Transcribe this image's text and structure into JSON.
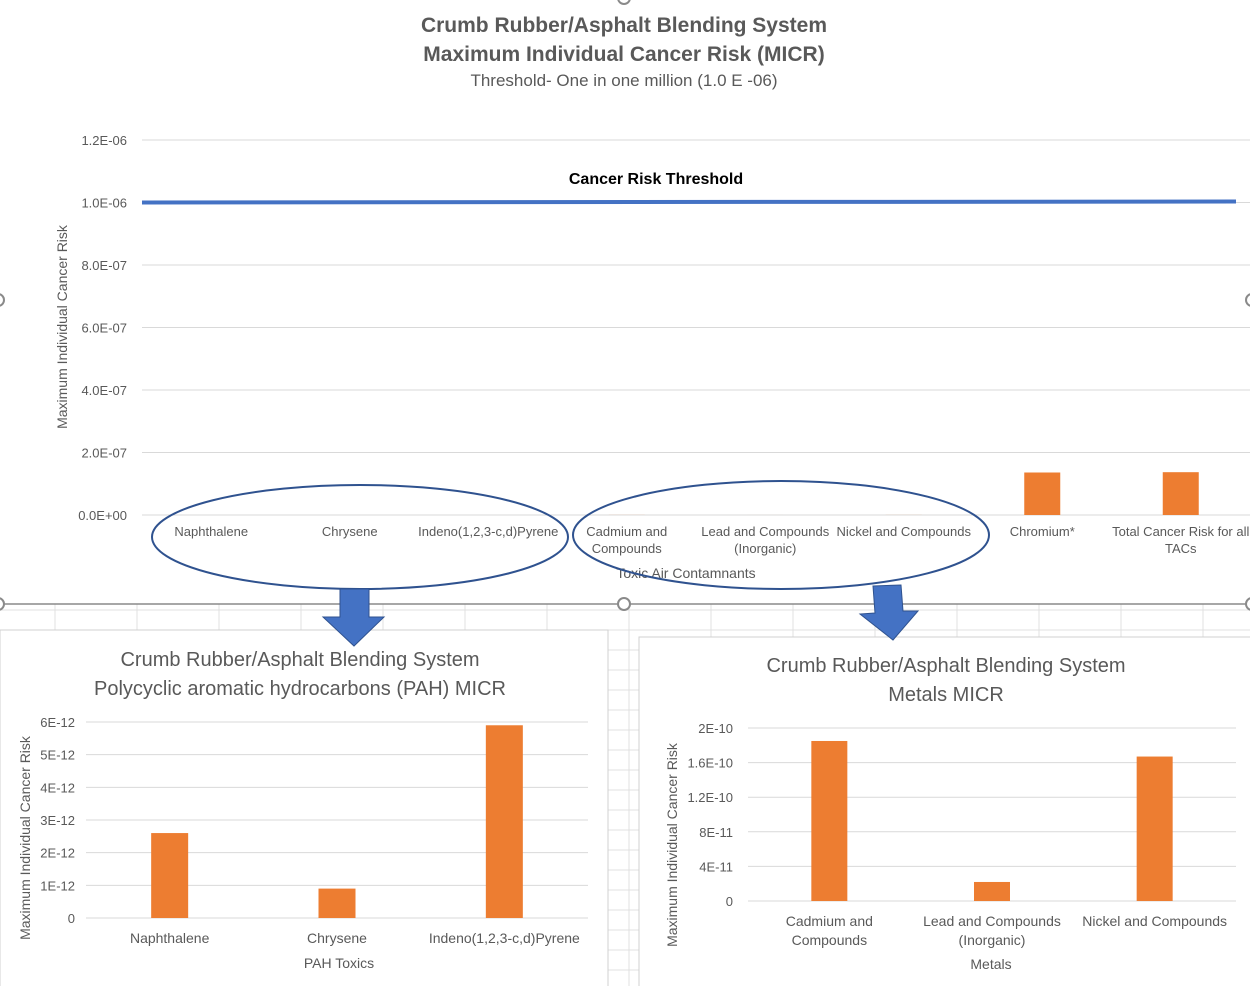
{
  "main_chart": {
    "title_line1": "Crumb Rubber/Asphalt Blending System",
    "title_line2": "Maximum Individual Cancer Risk (MICR)",
    "subtitle": "Threshold- One in one million (1.0 E -06)",
    "ylabel": "Maximum Individual Cancer Risk",
    "xlabel": "Toxic Air Contamnants",
    "threshold_label": "Cancer Risk Threshold"
  },
  "pah_chart": {
    "title_line1": "Crumb Rubber/Asphalt Blending System",
    "title_line2": "Polycyclic aromatic hydrocarbons (PAH) MICR",
    "ylabel": "Maximum Individual Cancer Risk",
    "xlabel": "PAH Toxics"
  },
  "metals_chart": {
    "title_line1": "Crumb Rubber/Asphalt Blending System",
    "title_line2": "Metals MICR",
    "ylabel": "Maximum Individual Cancer Risk",
    "xlabel": "Metals"
  },
  "colors": {
    "bar": "#ED7D31",
    "threshold_line": "#4472C4",
    "ellipse": "#2F528F",
    "arrow": "#4472C4",
    "grid": "#D9D9D9",
    "text": "#595959"
  },
  "chart_data": [
    {
      "type": "bar",
      "title": "Crumb Rubber/Asphalt Blending System Maximum Individual Cancer Risk (MICR)",
      "categories": [
        "Naphthalene",
        "Chrysene",
        "Indeno(1,2,3-c,d)Pyrene",
        "Cadmium and Compounds",
        "Lead and Compounds (Inorganic)",
        "Nickel and Compounds",
        "Chromium*",
        "Total Cancer Risk for all TACs"
      ],
      "category_lines": [
        [
          "Naphthalene"
        ],
        [
          "Chrysene"
        ],
        [
          "Indeno(1,2,3-c,d)Pyrene"
        ],
        [
          "Cadmium and",
          "Compounds"
        ],
        [
          "Lead and Compounds",
          "(Inorganic)"
        ],
        [
          "Nickel and Compounds"
        ],
        [
          "Chromium*"
        ],
        [
          "Total Cancer Risk for all",
          "TACs"
        ]
      ],
      "series": [
        {
          "values": [
            2.6e-12,
            9e-13,
            5.9e-12,
            1.85e-10,
            2.2e-11,
            1.67e-10,
            1.36e-07,
            1.37e-07
          ]
        },
        {
          "name": "Cancer Risk Threshold",
          "type": "line",
          "values": [
            1e-06,
            1e-06,
            1e-06,
            1e-06,
            1e-06,
            1e-06,
            1e-06,
            1e-06
          ]
        }
      ],
      "yticks": [
        "0.0E+00",
        "2.0E-07",
        "4.0E-07",
        "6.0E-07",
        "8.0E-07",
        "1.0E-06",
        "1.2E-06"
      ],
      "ylim": [
        0,
        1.2e-06
      ],
      "xlabel": "Toxic Air Contamnants",
      "ylabel": "Maximum Individual Cancer Risk",
      "grid": true
    },
    {
      "type": "bar",
      "title": "Crumb Rubber/Asphalt Blending System Polycyclic aromatic hydrocarbons (PAH) MICR",
      "categories": [
        "Naphthalene",
        "Chrysene",
        "Indeno(1,2,3-c,d)Pyrene"
      ],
      "category_lines": [
        [
          "Naphthalene"
        ],
        [
          "Chrysene"
        ],
        [
          "Indeno(1,2,3-c,d)Pyrene"
        ]
      ],
      "values": [
        2.6e-12,
        9e-13,
        5.9e-12
      ],
      "yticks": [
        "0",
        "1E-12",
        "2E-12",
        "3E-12",
        "4E-12",
        "5E-12",
        "6E-12"
      ],
      "ylim": [
        0,
        6e-12
      ],
      "xlabel": "PAH Toxics",
      "ylabel": "Maximum Individual Cancer Risk",
      "grid": true
    },
    {
      "type": "bar",
      "title": "Crumb Rubber/Asphalt Blending System Metals MICR",
      "categories": [
        "Cadmium and Compounds",
        "Lead and Compounds (Inorganic)",
        "Nickel and Compounds"
      ],
      "category_lines": [
        [
          "Cadmium and",
          "Compounds"
        ],
        [
          "Lead and Compounds",
          "(Inorganic)"
        ],
        [
          "Nickel and Compounds"
        ]
      ],
      "values": [
        1.85e-10,
        2.2e-11,
        1.67e-10
      ],
      "yticks": [
        "0",
        "4E-11",
        "8E-11",
        "1.2E-10",
        "1.6E-10",
        "2E-10"
      ],
      "ylim": [
        0,
        2e-10
      ],
      "xlabel": "Metals",
      "ylabel": "Maximum Individual Cancer Risk",
      "grid": true
    }
  ]
}
